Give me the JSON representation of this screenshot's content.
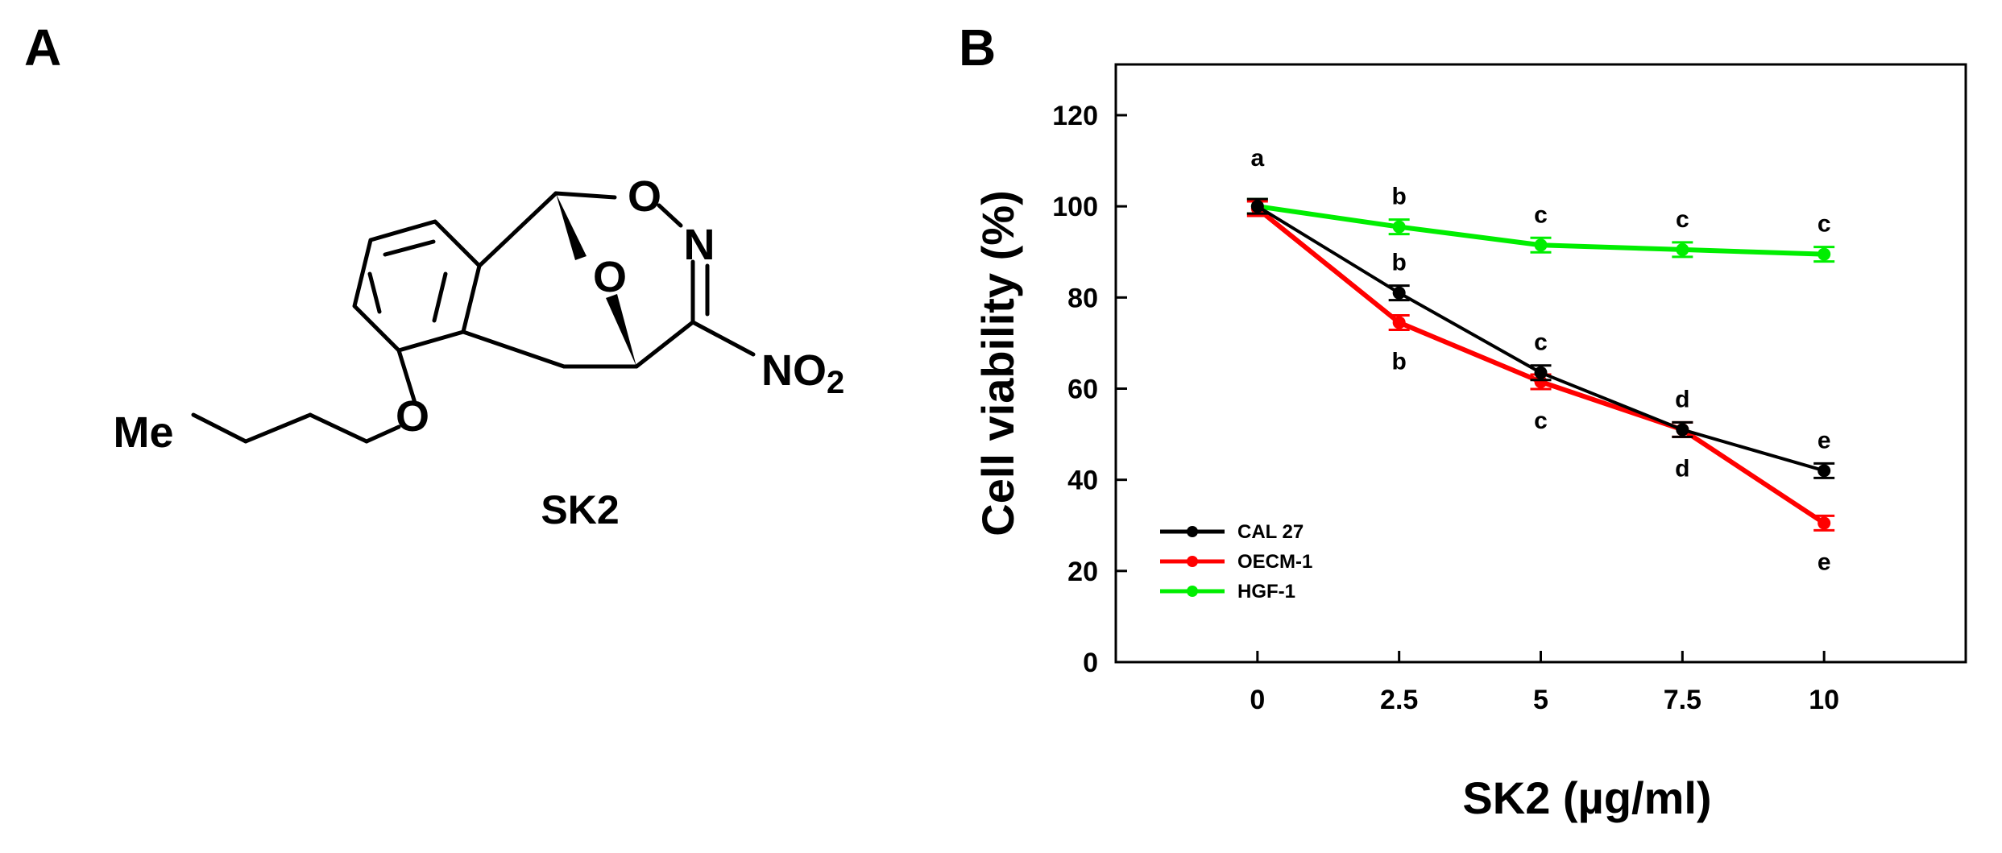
{
  "panels": {
    "a": "A",
    "b": "B"
  },
  "molecule": {
    "name": "SK2",
    "labels": {
      "me": "Me",
      "o_ether": "O",
      "o_ring": "O",
      "o_bridge": "O",
      "n_ring": "N",
      "nitro": "NO",
      "nitro_sub": "2"
    }
  },
  "chart_data": {
    "type": "line",
    "x": [
      0,
      2.5,
      5,
      7.5,
      10
    ],
    "x_tick_labels": [
      "0",
      "2.5",
      "5",
      "7.5",
      "10"
    ],
    "xlabel": "SK2 (µg/ml)",
    "ylabel": "Cell viability (%)",
    "ylim": [
      0,
      120
    ],
    "y_ticks": [
      0,
      20,
      40,
      60,
      80,
      100,
      120
    ],
    "grid": false,
    "legend_position": "bottom-left",
    "series": [
      {
        "name": "CAL 27",
        "color": "#000000",
        "values": [
          100,
          81,
          63.5,
          51,
          42
        ],
        "letters": [
          "",
          "b",
          "c",
          "d",
          "e"
        ],
        "letter_pos": [
          "",
          "above",
          "above",
          "above",
          "above"
        ]
      },
      {
        "name": "OECM-1",
        "color": "#ff0000",
        "values": [
          99.5,
          74.5,
          61.5,
          51,
          30.5
        ],
        "letters": [
          "",
          "b",
          "c",
          "d",
          "e"
        ],
        "letter_pos": [
          "",
          "below",
          "below",
          "below",
          "below"
        ]
      },
      {
        "name": "HGF-1",
        "color": "#00ee00",
        "values": [
          100,
          95.5,
          91.5,
          90.5,
          89.5
        ],
        "letters": [
          "a",
          "b",
          "c",
          "c",
          "c"
        ],
        "letter_pos": [
          "above",
          "above",
          "above",
          "above",
          "above"
        ]
      }
    ]
  }
}
